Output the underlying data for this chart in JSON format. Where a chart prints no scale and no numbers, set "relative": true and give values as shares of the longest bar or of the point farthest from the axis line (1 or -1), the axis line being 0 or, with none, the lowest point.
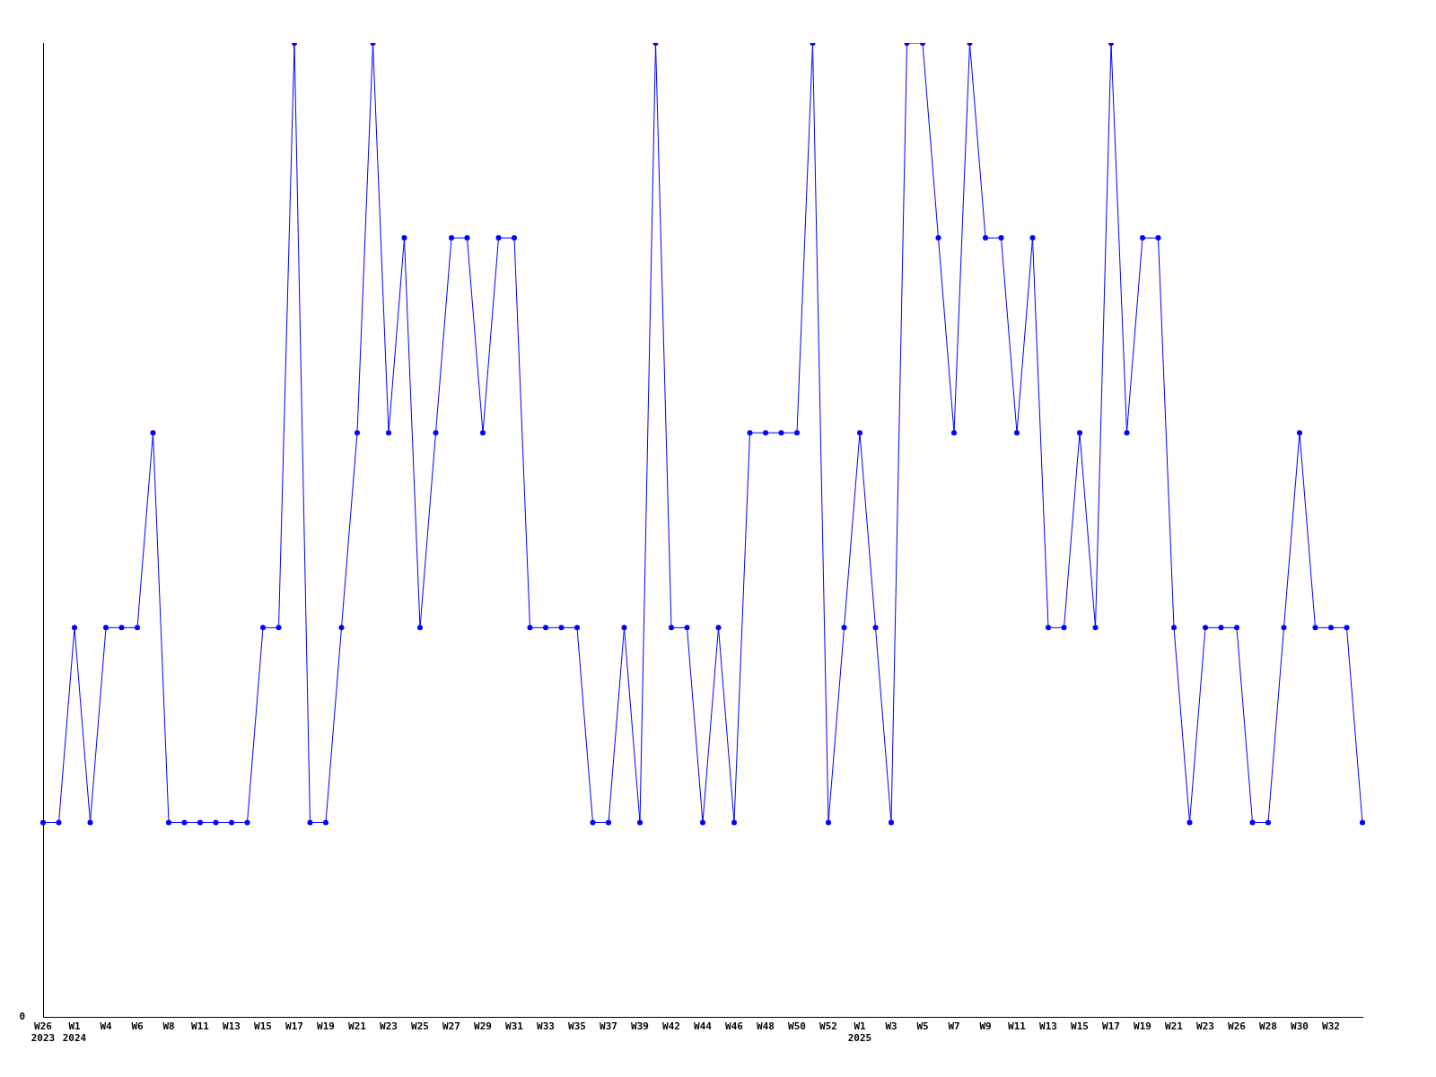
{
  "chart_data": {
    "type": "line",
    "relative": true,
    "annotations": [
      "0"
    ],
    "marker": "circle",
    "grid": false,
    "legend": false,
    "categories": [
      "W26\n2023",
      null,
      "W1\n2024",
      null,
      "W4",
      null,
      "W6",
      null,
      "W8",
      null,
      "W11",
      null,
      "W13",
      null,
      "W15",
      null,
      "W17",
      null,
      "W19",
      null,
      "W21",
      null,
      "W23",
      null,
      "W25",
      null,
      "W27",
      null,
      "W29",
      null,
      "W31",
      null,
      "W33",
      null,
      "W35",
      null,
      "W37",
      null,
      "W39",
      null,
      "W42",
      null,
      "W44",
      null,
      "W46",
      null,
      "W48",
      null,
      "W50",
      null,
      "W52",
      null,
      "W1\n2025",
      null,
      "W3",
      null,
      "W5",
      null,
      "W7",
      null,
      "W9",
      null,
      "W11",
      null,
      "W13",
      null,
      "W15",
      null,
      "W17",
      null,
      "W19",
      null,
      "W21",
      null,
      "W23",
      null,
      "W26",
      null,
      "W28",
      null,
      "W30",
      null,
      "W32",
      null,
      null
    ],
    "series": [
      {
        "color": "#0000ff",
        "values": [
          0.2,
          0.2,
          0.4,
          0.2,
          0.4,
          0.4,
          0.4,
          0.6,
          0.2,
          0.2,
          0.2,
          0.2,
          0.2,
          0.2,
          0.4,
          0.4,
          1.0,
          0.2,
          0.2,
          0.4,
          0.6,
          1.0,
          0.6,
          0.8,
          0.4,
          0.6,
          0.8,
          0.8,
          0.6,
          0.8,
          0.8,
          0.4,
          0.4,
          0.4,
          0.4,
          0.2,
          0.2,
          0.4,
          0.2,
          1.0,
          0.4,
          0.4,
          0.2,
          0.4,
          0.2,
          0.6,
          0.6,
          0.6,
          0.6,
          1.0,
          0.2,
          0.4,
          0.6,
          0.4,
          0.2,
          1.0,
          1.0,
          0.8,
          0.6,
          1.0,
          0.8,
          0.8,
          0.6,
          0.8,
          0.4,
          0.4,
          0.6,
          0.4,
          1.0,
          0.6,
          0.8,
          0.8,
          0.4,
          0.2,
          0.4,
          0.4,
          0.4,
          0.2,
          0.2,
          0.4,
          0.6,
          0.4,
          0.4,
          0.4,
          0.2
        ]
      }
    ]
  }
}
